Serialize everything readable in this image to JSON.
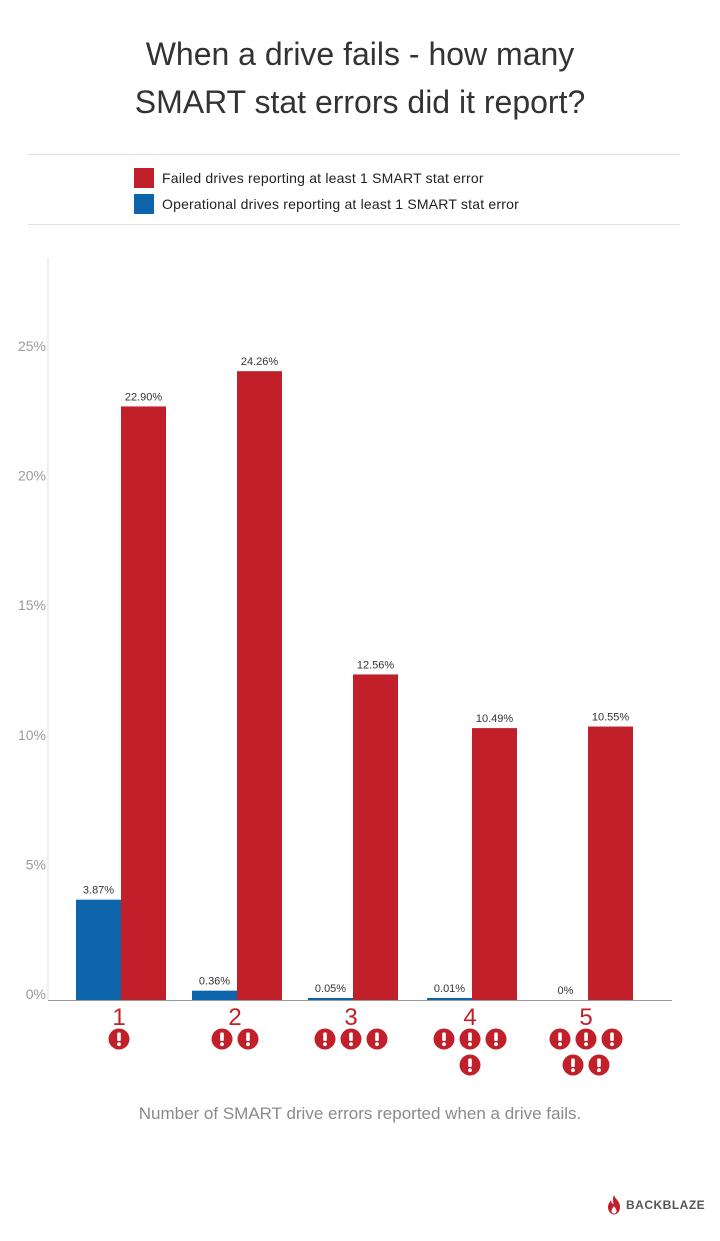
{
  "title": {
    "line1": "When a drive fails - how many",
    "line2": "SMART stat errors did it report?"
  },
  "legend": {
    "failed": {
      "label": "Failed drives reporting at least 1 SMART stat error",
      "color": "#c1202a"
    },
    "operational": {
      "label": "Operational drives reporting at least 1 SMART stat error",
      "color": "#0d64aa"
    }
  },
  "footnote": "Number of SMART drive errors reported when a drive fails.",
  "logo": {
    "text": "BACKBLAZE"
  },
  "chart_data": {
    "type": "bar",
    "categories": [
      "1",
      "2",
      "3",
      "4",
      "5"
    ],
    "error_icon_counts": [
      1,
      2,
      3,
      4,
      5
    ],
    "series": [
      {
        "name": "Operational drives reporting at least 1 SMART stat error",
        "color": "#0d64aa",
        "values": [
          3.87,
          0.36,
          0.05,
          0.01,
          0
        ],
        "labels": [
          "3.87%",
          "0.36%",
          "0.05%",
          "0.01%",
          "0%"
        ]
      },
      {
        "name": "Failed drives reporting at least 1 SMART stat error",
        "color": "#c1202a",
        "values": [
          22.9,
          24.26,
          12.56,
          10.49,
          10.55
        ],
        "labels": [
          "22.90%",
          "24.26%",
          "12.56%",
          "10.49%",
          "10.55%"
        ]
      }
    ],
    "y_ticks": [
      0,
      5,
      10,
      15,
      20,
      25
    ],
    "y_tick_labels": [
      "0%",
      "5%",
      "10%",
      "15%",
      "20%",
      "25%"
    ],
    "ylim": [
      0,
      25
    ],
    "grid": false,
    "legend_position": "top",
    "xlabel": "Number of SMART drive errors reported when a drive fails.",
    "category_color": "#c1202a"
  }
}
